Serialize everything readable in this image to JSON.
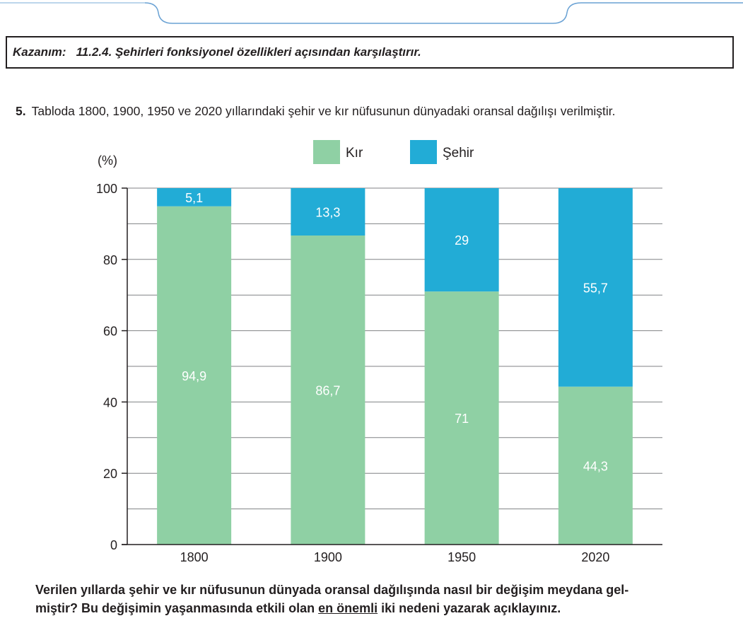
{
  "kazanim": {
    "label": "Kazanım:",
    "text": "11.2.4. Şehirleri fonksiyonel özellikleri açısından karşılaştırır."
  },
  "question": {
    "number": "5.",
    "text": "Tabloda 1800, 1900, 1950 ve 2020 yıllarındaki şehir ve kır nüfusunun dünyadaki oransal dağılışı verilmiştir."
  },
  "instruction": {
    "line1": "Verilen yıllarda şehir ve kır nüfusunun dünyada oransal dağılışında nasıl bir değişim meydana gel-",
    "line2_before": "miştir? Bu değişimin yaşanmasında etkili olan ",
    "line2_underlined": "en önemli",
    "line2_after": " iki nedeni yazarak açıklayınız."
  },
  "chart_data": {
    "type": "bar",
    "stacked": true,
    "categories": [
      "1800",
      "1900",
      "1950",
      "2020"
    ],
    "series": [
      {
        "name": "Kır",
        "values": [
          94.9,
          86.7,
          71,
          44.3
        ],
        "labels": [
          "94,9",
          "86,7",
          "71",
          "44,3"
        ],
        "color": "#8fd0a4"
      },
      {
        "name": "Şehir",
        "values": [
          5.1,
          13.3,
          29,
          55.7
        ],
        "labels": [
          "5,1",
          "13,3",
          "29",
          "55,7"
        ],
        "color": "#22acd6"
      }
    ],
    "ylabel": "(%)",
    "ylim": [
      0,
      100
    ],
    "yticks": [
      "0",
      "20",
      "40",
      "60",
      "80",
      "100"
    ],
    "grid": true,
    "legend_position": "top-center"
  }
}
